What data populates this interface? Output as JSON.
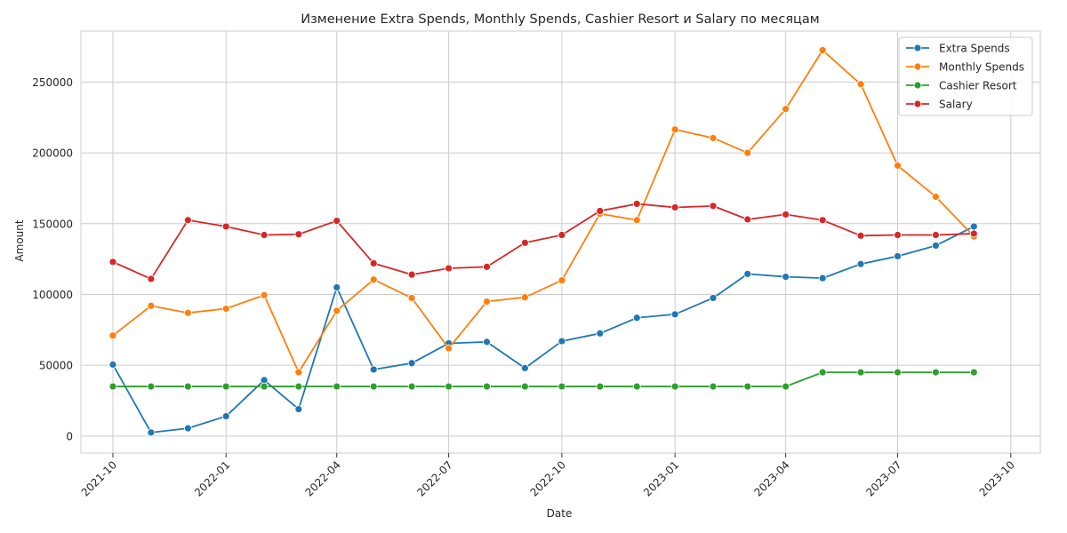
{
  "chart_data": {
    "type": "line",
    "title": "Изменение Extra Spends, Monthly Spends, Cashier Resort и Salary по месяцам",
    "xlabel": "Date",
    "ylabel": "Amount",
    "x": [
      "2021-10",
      "2021-11",
      "2021-12",
      "2022-01",
      "2022-02",
      "2022-03",
      "2022-04",
      "2022-05",
      "2022-06",
      "2022-07",
      "2022-08",
      "2022-09",
      "2022-10",
      "2022-11",
      "2022-12",
      "2023-01",
      "2023-02",
      "2023-03",
      "2023-04",
      "2023-05",
      "2023-06",
      "2023-07",
      "2023-08",
      "2023-09"
    ],
    "x_ticks": [
      "2021-10",
      "2022-01",
      "2022-04",
      "2022-07",
      "2022-10",
      "2023-01",
      "2023-04",
      "2023-07",
      "2023-10"
    ],
    "y_ticks": [
      0,
      50000,
      100000,
      150000,
      200000,
      250000
    ],
    "ylim": [
      -12000,
      286000
    ],
    "xlim": [
      "2021-09-05",
      "2023-10-25"
    ],
    "grid": true,
    "legend_position": "top-right",
    "series": [
      {
        "name": "Extra Spends",
        "color": "#1f77b4",
        "values": [
          50500,
          2500,
          5500,
          14000,
          39500,
          19000,
          105000,
          47000,
          51500,
          65500,
          66500,
          48000,
          67000,
          72500,
          83500,
          86000,
          97500,
          114500,
          112500,
          111500,
          121500,
          127000,
          134500,
          148000
        ]
      },
      {
        "name": "Monthly Spends",
        "color": "#ff7f0e",
        "values": [
          71000,
          92000,
          87000,
          90000,
          99500,
          45000,
          88500,
          110500,
          97500,
          62000,
          95000,
          98000,
          110000,
          157000,
          152500,
          216500,
          210500,
          200000,
          231000,
          272500,
          248500,
          191000,
          169000,
          141000
        ]
      },
      {
        "name": "Cashier Resort",
        "color": "#2ca02c",
        "values": [
          35000,
          35000,
          35000,
          35000,
          35000,
          35000,
          35000,
          35000,
          35000,
          35000,
          35000,
          35000,
          35000,
          35000,
          35000,
          35000,
          35000,
          35000,
          35000,
          45000,
          45000,
          45000,
          45000,
          45000
        ]
      },
      {
        "name": "Salary",
        "color": "#d62728",
        "values": [
          123000,
          111000,
          152500,
          148000,
          142000,
          142500,
          152000,
          122000,
          114000,
          118500,
          119500,
          136500,
          142000,
          159000,
          164000,
          161500,
          162500,
          153000,
          156500,
          152500,
          141500,
          142000,
          142000,
          143000
        ]
      }
    ]
  }
}
